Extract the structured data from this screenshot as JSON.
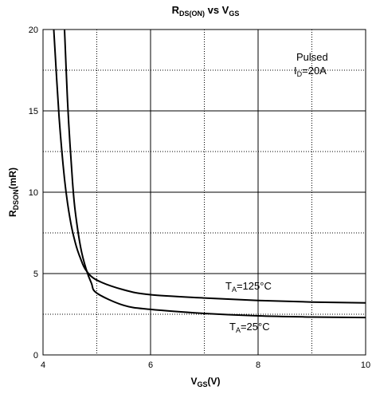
{
  "chart_data": {
    "type": "line",
    "title": {
      "main": "R",
      "main_sub": "DS(ON)",
      "mid": " vs V",
      "mid_sub": "GS"
    },
    "xlabel": {
      "main": "V",
      "sub": "GS",
      "suffix": "(V)"
    },
    "ylabel": {
      "main": "R",
      "sub": "DSON",
      "suffix": "(mR)"
    },
    "xlim": [
      4,
      10
    ],
    "ylim": [
      0,
      20
    ],
    "x_ticks": [
      4,
      6,
      8,
      10
    ],
    "y_ticks": [
      0,
      5,
      10,
      15,
      20
    ],
    "grid": {
      "solid_x": [
        6,
        8
      ],
      "dotted_x": [
        5,
        7,
        9
      ],
      "solid_y": [
        5,
        10,
        15
      ],
      "dotted_y": [
        2.5,
        7.5,
        12.5,
        17.5
      ]
    },
    "annotations": {
      "line1": "Pulsed",
      "line2_main": "I",
      "line2_sub": "D",
      "line2_rest": "=20A"
    },
    "series": [
      {
        "name": {
          "main": "T",
          "sub": "A",
          "rest": "=125°C"
        },
        "x": [
          4.2,
          4.3,
          4.4,
          4.5,
          4.6,
          4.7,
          4.8,
          5.0,
          5.5,
          6.0,
          7.0,
          8.0,
          9.0,
          10.0
        ],
        "y": [
          20.0,
          14.6,
          10.8,
          8.4,
          6.9,
          5.9,
          5.2,
          4.6,
          4.0,
          3.7,
          3.5,
          3.35,
          3.25,
          3.2
        ]
      },
      {
        "name": {
          "main": "T",
          "sub": "A",
          "rest": "=25°C"
        },
        "x": [
          4.4,
          4.45,
          4.5,
          4.55,
          4.6,
          4.7,
          4.8,
          4.9,
          5.0,
          5.5,
          6.0,
          7.0,
          8.0,
          9.0,
          10.0
        ],
        "y": [
          20.0,
          16.0,
          13.0,
          10.6,
          8.8,
          6.6,
          5.3,
          4.4,
          3.8,
          3.05,
          2.8,
          2.55,
          2.4,
          2.33,
          2.3
        ]
      }
    ]
  }
}
